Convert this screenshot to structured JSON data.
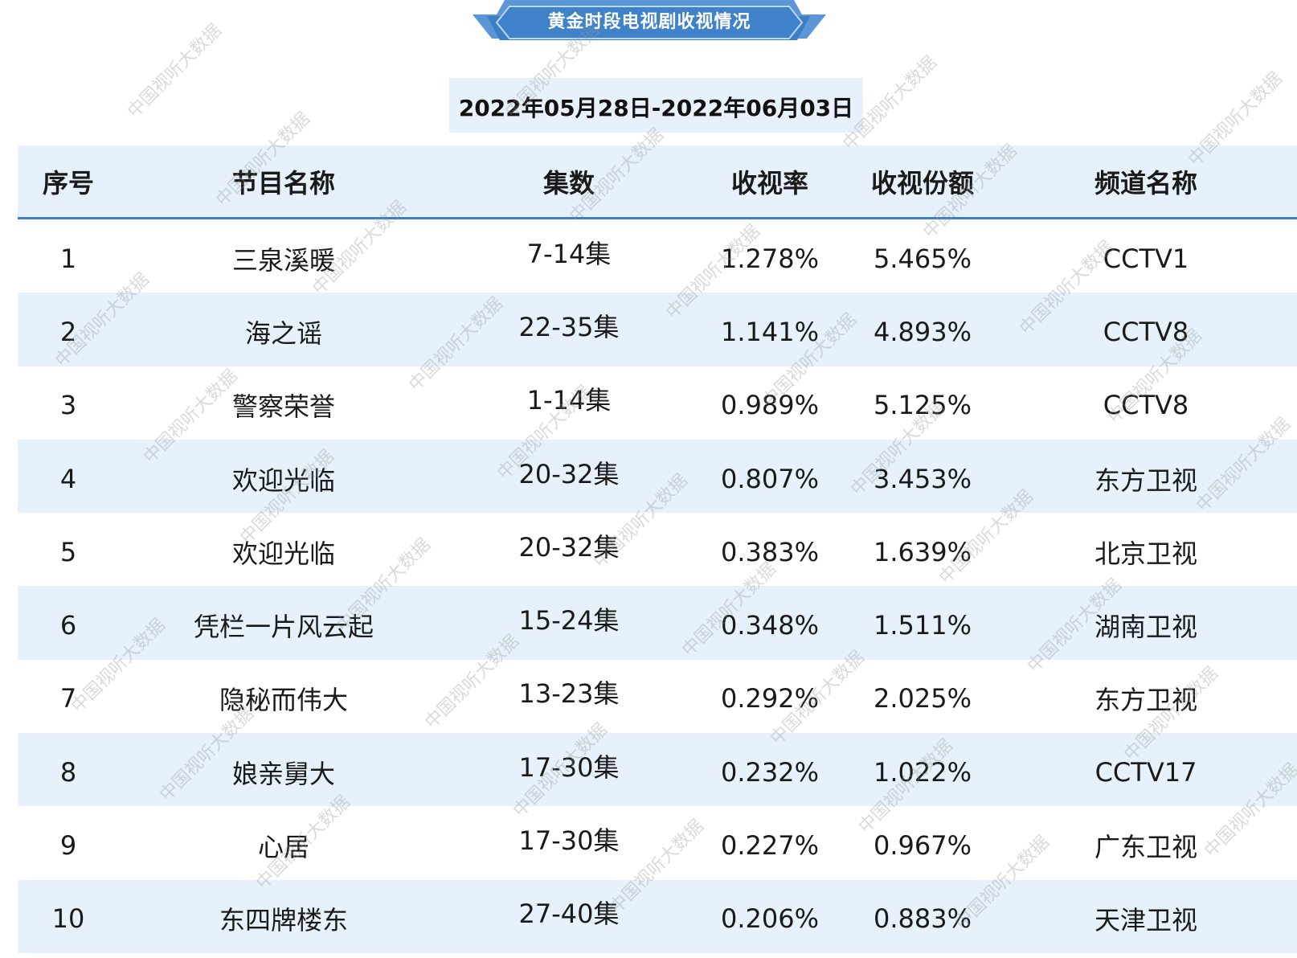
{
  "banner": {
    "title": "黄金时段电视剧收视情况",
    "color": "#3c7fc4"
  },
  "date_range": "2022年05月28日-2022年06月03日",
  "table": {
    "headers": {
      "no": "序号",
      "name": "节目名称",
      "episodes": "集数",
      "rating": "收视率",
      "share": "收视份额",
      "channel": "频道名称"
    },
    "rows": [
      {
        "no": "1",
        "name": "三泉溪暖",
        "episodes": "7-14集",
        "rating": "1.278%",
        "share": "5.465%",
        "channel": "CCTV1"
      },
      {
        "no": "2",
        "name": "海之谣",
        "episodes": "22-35集",
        "rating": "1.141%",
        "share": "4.893%",
        "channel": "CCTV8"
      },
      {
        "no": "3",
        "name": "警察荣誉",
        "episodes": "1-14集",
        "rating": "0.989%",
        "share": "5.125%",
        "channel": "CCTV8"
      },
      {
        "no": "4",
        "name": "欢迎光临",
        "episodes": "20-32集",
        "rating": "0.807%",
        "share": "3.453%",
        "channel": "东方卫视"
      },
      {
        "no": "5",
        "name": "欢迎光临",
        "episodes": "20-32集",
        "rating": "0.383%",
        "share": "1.639%",
        "channel": "北京卫视"
      },
      {
        "no": "6",
        "name": "凭栏一片风云起",
        "episodes": "15-24集",
        "rating": "0.348%",
        "share": "1.511%",
        "channel": "湖南卫视"
      },
      {
        "no": "7",
        "name": "隐秘而伟大",
        "episodes": "13-23集",
        "rating": "0.292%",
        "share": "2.025%",
        "channel": "东方卫视"
      },
      {
        "no": "8",
        "name": "娘亲舅大",
        "episodes": "17-30集",
        "rating": "0.232%",
        "share": "1.022%",
        "channel": "CCTV17"
      },
      {
        "no": "9",
        "name": "心居",
        "episodes": "17-30集",
        "rating": "0.227%",
        "share": "0.967%",
        "channel": "广东卫视"
      },
      {
        "no": "10",
        "name": "东四牌楼东",
        "episodes": "27-40集",
        "rating": "0.206%",
        "share": "0.883%",
        "channel": "天津卫视"
      }
    ]
  },
  "watermark_text": "中国视听大数据"
}
